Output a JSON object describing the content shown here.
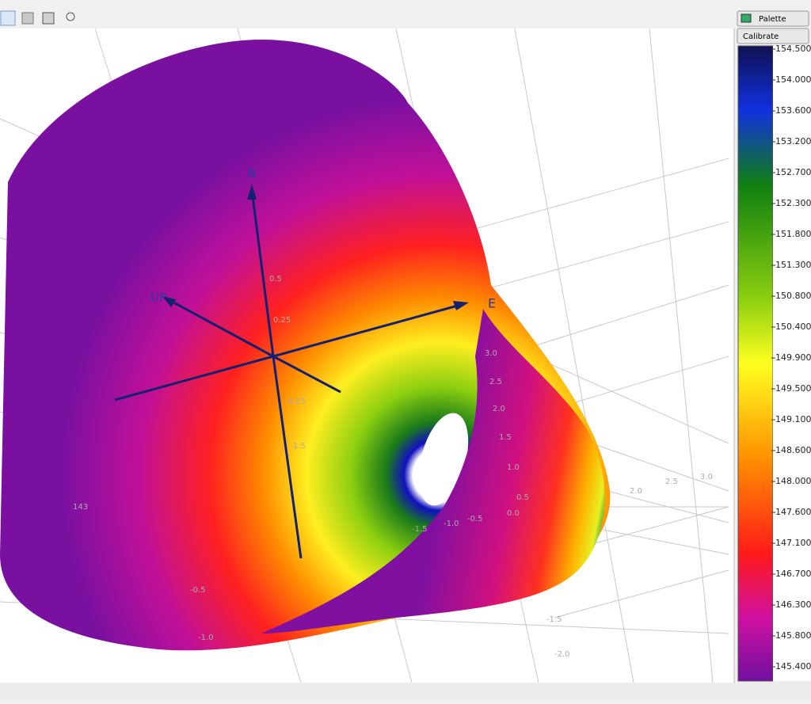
{
  "toolbar": {
    "buttons": [
      "Palette",
      "Calibrate"
    ]
  },
  "axes": {
    "north": "N",
    "east": "E",
    "up": "UP"
  },
  "plot_labels": [
    "0.5",
    "0.25",
    "-0.25",
    "1.5",
    "3.0",
    "2.5",
    "2.0",
    "1.5",
    "1.0",
    "0.5",
    "0.0",
    "-0.5",
    "-1.0",
    "-1.5",
    "2.0",
    "2.5",
    "3.0",
    "143",
    "-0.5",
    "-1.0",
    "-1.5",
    "-2.0"
  ],
  "colorbar": {
    "labels": [
      "154.500",
      "154.000",
      "153.600",
      "153.200",
      "152.700",
      "152.300",
      "151.800",
      "151.300",
      "150.800",
      "150.400",
      "149.900",
      "149.500",
      "149.100",
      "148.600",
      "148.000",
      "147.600",
      "147.100",
      "146.700",
      "146.300",
      "145.800",
      "145.400"
    ]
  }
}
